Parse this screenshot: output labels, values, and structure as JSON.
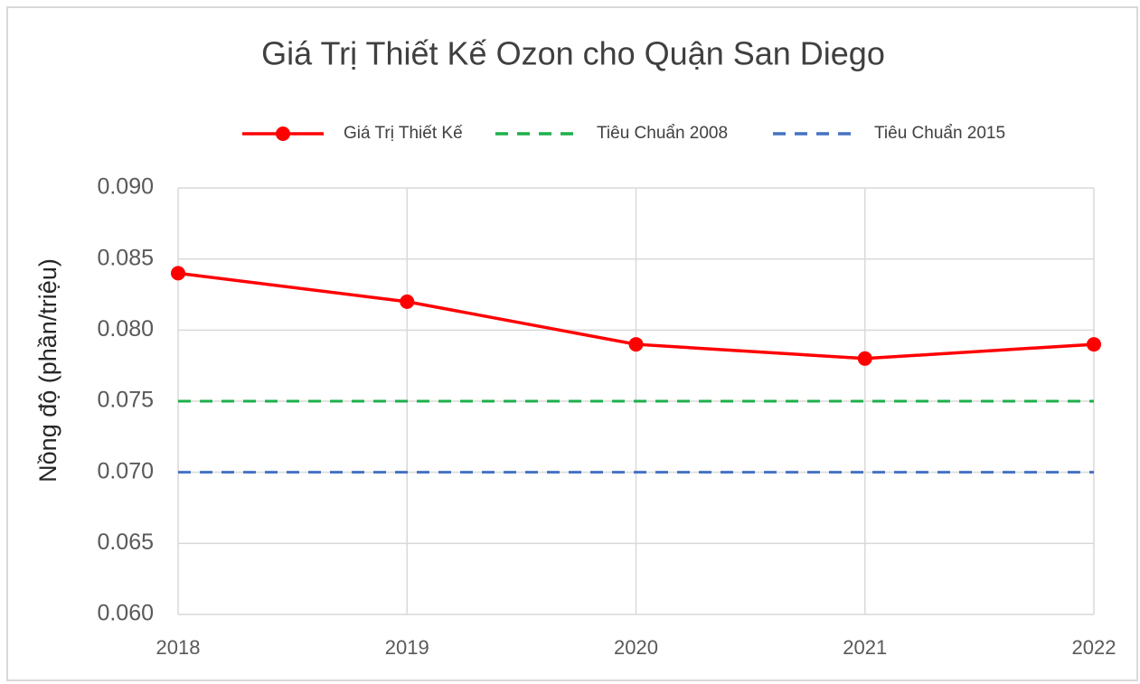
{
  "chart_data": {
    "type": "line",
    "title": "Giá Trị Thiết Kế Ozon cho Quận San Diego",
    "y_label": "Nồng độ (phần/triệu)",
    "x": [
      2018,
      2019,
      2020,
      2021,
      2022
    ],
    "xlim": [
      2018,
      2022
    ],
    "xticks": [
      2018,
      2019,
      2020,
      2021,
      2022
    ],
    "ylim": [
      0.06,
      0.09
    ],
    "yticks": [
      {
        "value": 0.06,
        "label": "0.060"
      },
      0.065,
      {
        "value": 0.07,
        "label": "0.070"
      },
      0.075,
      {
        "value": 0.08,
        "label": "0.080"
      },
      0.085,
      {
        "value": 0.09,
        "label": "0.090"
      }
    ],
    "grid": true,
    "legend": "top",
    "series": [
      {
        "name": "Giá Trị Thiết Kế",
        "color": "#ff0000",
        "dashed": false,
        "markers": true,
        "values": [
          0.084,
          0.082,
          0.079,
          0.078,
          0.079
        ]
      },
      {
        "name": "Tiêu Chuẩn 2008",
        "color": "#1eb04a",
        "dashed": true,
        "markers": false,
        "values": [
          0.075,
          0.075,
          0.075,
          0.075,
          0.075
        ]
      },
      {
        "name": "Tiêu Chuẩn 2015",
        "color": "#4472c4",
        "dashed": true,
        "markers": false,
        "values": [
          0.07,
          0.07,
          0.07,
          0.07,
          0.07
        ]
      }
    ]
  }
}
